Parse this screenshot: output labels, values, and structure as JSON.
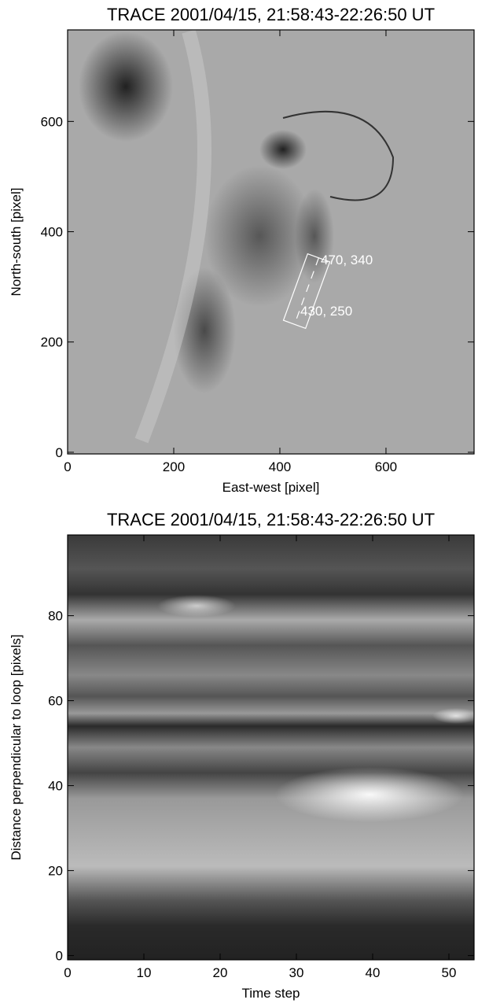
{
  "chart_data": [
    {
      "type": "image",
      "title": "TRACE 2001/04/15, 21:58:43-22:26:50 UT",
      "x_label": "East-west [pixel]",
      "y_label": "North-south [pixel]",
      "xlim": [
        0,
        766
      ],
      "ylim": [
        -3,
        766
      ],
      "xticks": [
        0,
        200,
        400,
        600
      ],
      "yticks": [
        0,
        200,
        400,
        600
      ],
      "annotations": [
        "470, 340",
        "430, 250"
      ]
    },
    {
      "type": "image",
      "title": "TRACE 2001/04/15, 21:58:43-22:26:50 UT",
      "x_label": "Time step",
      "y_label": "Distance perpendicular to loop [pixels]",
      "xlim": [
        0,
        53.3
      ],
      "ylim": [
        -1,
        99
      ],
      "xticks": [
        0,
        10,
        20,
        30,
        40,
        50
      ],
      "yticks": [
        0,
        20,
        40,
        60,
        80
      ]
    }
  ]
}
